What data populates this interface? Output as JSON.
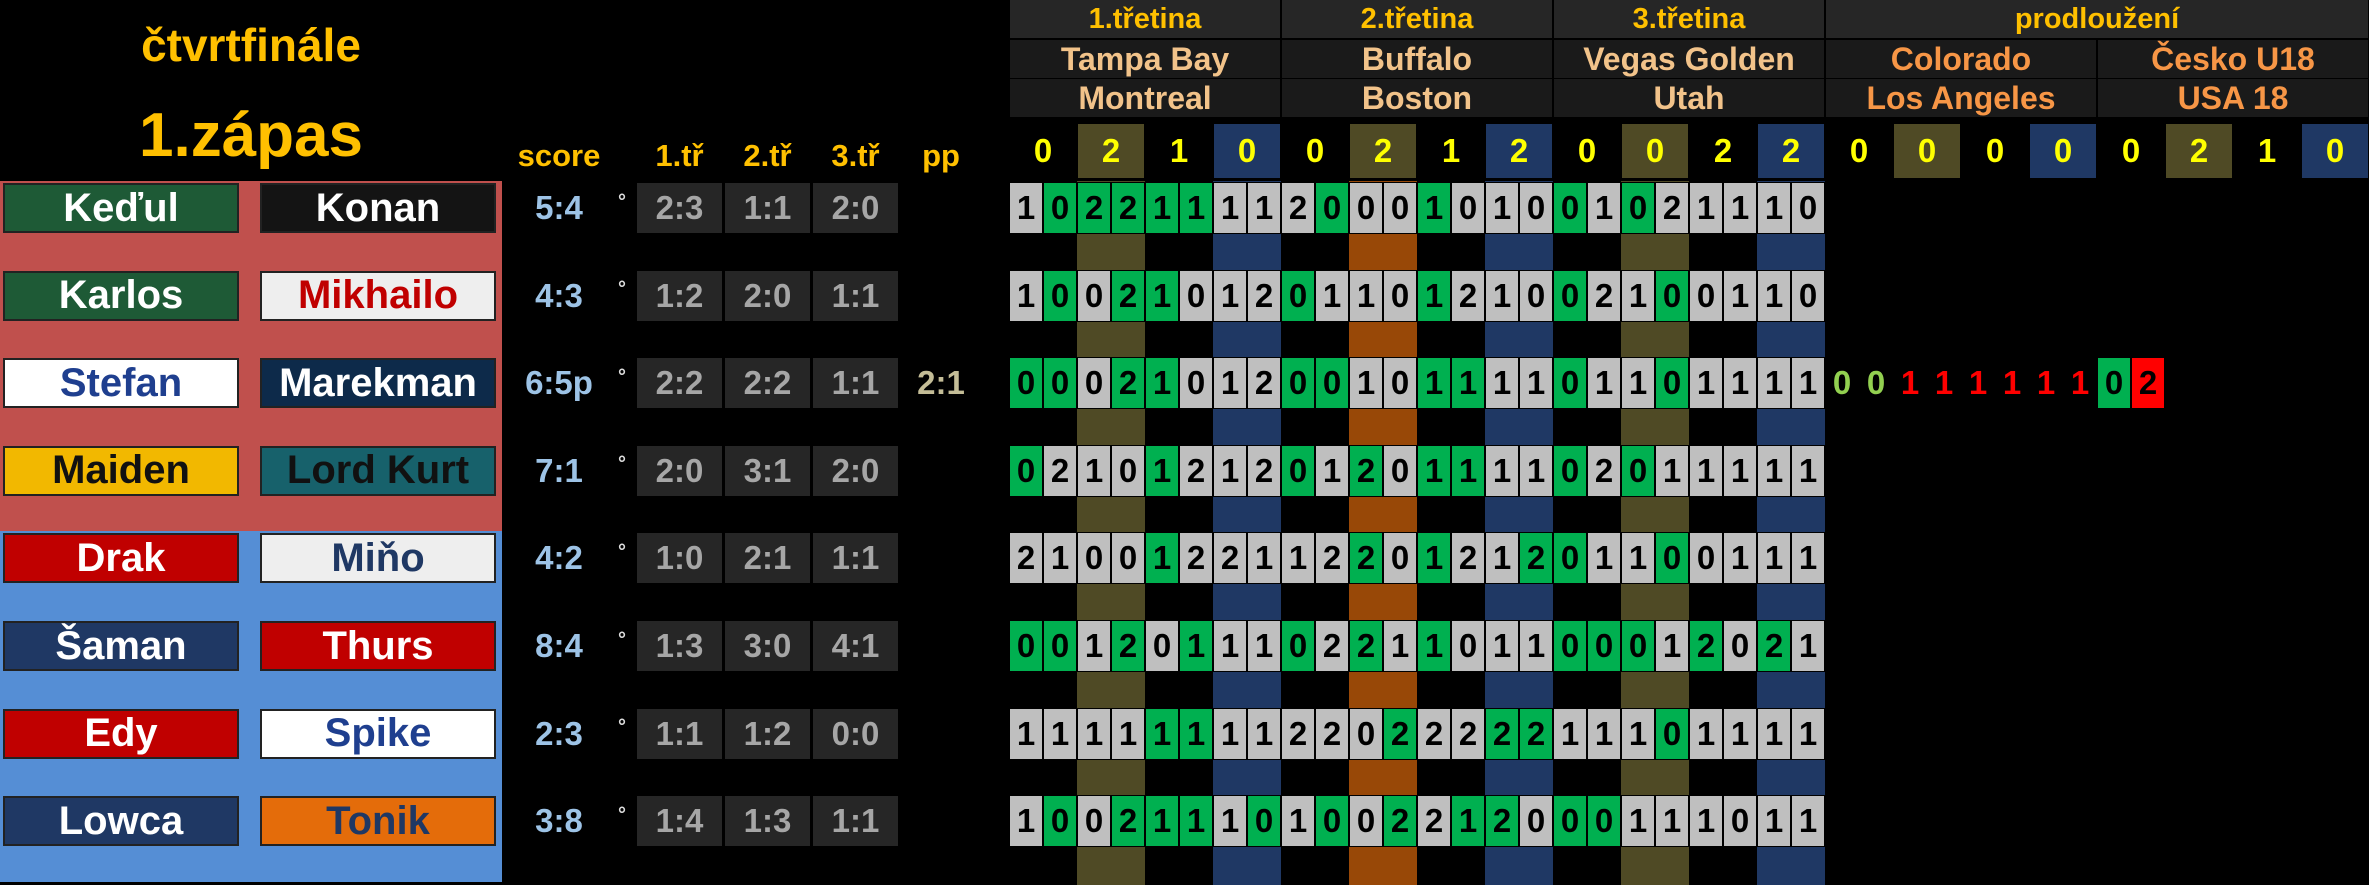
{
  "title": "čtvrtfinále",
  "subtitle": "1.zápas",
  "columns": [
    "score",
    "1.tř",
    "2.tř",
    "3.tř",
    "pp"
  ],
  "periods": [
    "1.třetina",
    "2.třetina",
    "3.třetina",
    "prodloužení"
  ],
  "games": [
    {
      "home": "Tampa Bay",
      "away": "Montreal"
    },
    {
      "home": "Buffalo",
      "away": "Boston"
    },
    {
      "home": "Vegas Golden",
      "away": "Utah"
    },
    {
      "home": "Colorado",
      "away": "Los Angeles"
    },
    {
      "home": "Česko U18",
      "away": "USA 18"
    }
  ],
  "results": [
    0,
    2,
    1,
    0,
    0,
    2,
    1,
    2,
    0,
    0,
    2,
    2,
    0,
    0,
    0,
    0,
    0,
    2,
    1,
    0
  ],
  "rows": [
    {
      "home": {
        "name": "Keďul",
        "color": "#1e5a36",
        "text_color": "#ffffff"
      },
      "away": {
        "name": "Konan",
        "color": "#141414",
        "text_color": "#ffffff"
      },
      "score": "5:4",
      "mark": "°",
      "period_scores": [
        "2:3",
        "1:1",
        "2:0"
      ],
      "tips": [
        1,
        0,
        2,
        2,
        1,
        1,
        1,
        1,
        2,
        0,
        0,
        0,
        1,
        0,
        1,
        0,
        0,
        1,
        0,
        2,
        1,
        1,
        1,
        0
      ]
    },
    {
      "home": {
        "name": "Karlos",
        "color": "#1e5a36",
        "text_color": "#ffffff"
      },
      "away": {
        "name": "Mikhailo",
        "color": "#eeeeee",
        "text_color": "#c00000"
      },
      "score": "4:3",
      "mark": "°",
      "period_scores": [
        "1:2",
        "2:0",
        "1:1"
      ],
      "tips": [
        1,
        0,
        0,
        2,
        1,
        0,
        1,
        2,
        0,
        1,
        1,
        0,
        1,
        2,
        1,
        0,
        0,
        2,
        1,
        0,
        0,
        1,
        1,
        0
      ]
    },
    {
      "home": {
        "name": "Stefan",
        "color": "#ffffff",
        "text_color": "#1f3f8f"
      },
      "away": {
        "name": "Marekman",
        "color": "#0d2a4a",
        "text_color": "#ffffff"
      },
      "score": "6:5p",
      "mark": "°",
      "period_scores": [
        "2:2",
        "2:2",
        "1:1"
      ],
      "pp": "2:1",
      "tips": [
        0,
        0,
        0,
        2,
        1,
        0,
        1,
        2,
        0,
        0,
        1,
        0,
        1,
        1,
        1,
        1,
        0,
        1,
        1,
        0,
        1,
        1,
        1,
        1
      ],
      "overtime": [
        0,
        0,
        1,
        1,
        1,
        1,
        1,
        1,
        0,
        2
      ]
    },
    {
      "home": {
        "name": "Maiden",
        "color": "#f2b800",
        "text_color": "#111111"
      },
      "away": {
        "name": "Lord Kurt",
        "color": "#17616b",
        "text_color": "#111111"
      },
      "score": "7:1",
      "mark": "°",
      "period_scores": [
        "2:0",
        "3:1",
        "2:0"
      ],
      "tips": [
        0,
        2,
        1,
        0,
        1,
        2,
        1,
        2,
        0,
        1,
        2,
        0,
        1,
        1,
        1,
        1,
        0,
        2,
        0,
        1,
        1,
        1,
        1,
        1
      ]
    },
    {
      "home": {
        "name": "Drak",
        "color": "#c00000",
        "text_color": "#ffffff"
      },
      "away": {
        "name": "Miňo",
        "color": "#eeeeee",
        "text_color": "#1f3864"
      },
      "score": "4:2",
      "mark": "°",
      "period_scores": [
        "1:0",
        "2:1",
        "1:1"
      ],
      "tips": [
        2,
        1,
        0,
        0,
        1,
        2,
        2,
        1,
        1,
        2,
        2,
        0,
        1,
        2,
        1,
        2,
        0,
        1,
        1,
        0,
        0,
        1,
        1,
        1
      ]
    },
    {
      "home": {
        "name": "Šaman",
        "color": "#1f3864",
        "text_color": "#ffffff"
      },
      "away": {
        "name": "Thurs",
        "color": "#c00000",
        "text_color": "#ffffff"
      },
      "score": "8:4",
      "mark": "°",
      "period_scores": [
        "1:3",
        "3:0",
        "4:1"
      ],
      "tips": [
        0,
        0,
        1,
        2,
        0,
        1,
        1,
        1,
        0,
        2,
        2,
        1,
        1,
        0,
        1,
        1,
        0,
        0,
        0,
        1,
        2,
        0,
        2,
        1
      ]
    },
    {
      "home": {
        "name": "Edy",
        "color": "#c00000",
        "text_color": "#ffffff"
      },
      "away": {
        "name": "Spike",
        "color": "#ffffff",
        "text_color": "#1f3f8f"
      },
      "score": "2:3",
      "mark": "°",
      "period_scores": [
        "1:1",
        "1:2",
        "0:0"
      ],
      "tips": [
        1,
        1,
        1,
        1,
        1,
        1,
        1,
        1,
        2,
        2,
        0,
        2,
        2,
        2,
        2,
        2,
        1,
        1,
        1,
        0,
        1,
        1,
        1,
        1
      ]
    },
    {
      "home": {
        "name": "Lowca",
        "color": "#1f3864",
        "text_color": "#ffffff"
      },
      "away": {
        "name": "Tonik",
        "color": "#e46c0a",
        "text_color": "#1f3864"
      },
      "score": "3:8",
      "mark": "°",
      "period_scores": [
        "1:4",
        "1:3",
        "1:1"
      ],
      "tips": [
        1,
        0,
        0,
        2,
        1,
        1,
        1,
        0,
        1,
        0,
        0,
        2,
        2,
        1,
        2,
        0,
        0,
        0,
        1,
        1,
        1,
        0,
        1,
        1
      ]
    }
  ]
}
